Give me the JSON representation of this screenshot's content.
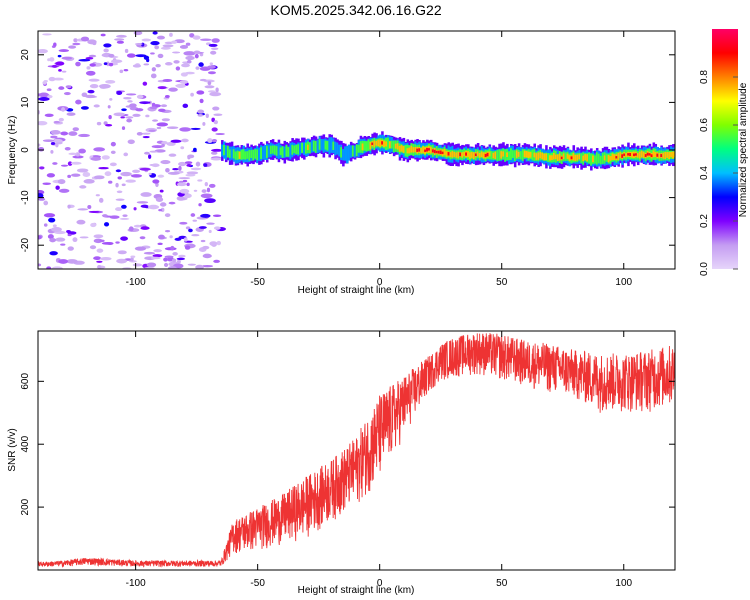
{
  "title": "KOM5.2025.342.06.16.G22",
  "chart_data": [
    {
      "id": "spectrogram",
      "type": "heatmap",
      "xlabel": "Height of straight line (km)",
      "ylabel": "Frequency (Hz)",
      "xlim": [
        -140,
        121
      ],
      "ylim": [
        -25,
        25
      ],
      "x_ticks": [
        -100,
        -50,
        0,
        50,
        100
      ],
      "y_ticks": [
        -20,
        -10,
        0,
        10,
        20
      ],
      "colorbar": {
        "label": "Normalized spectral amplitude",
        "range": [
          0,
          1
        ],
        "ticks": [
          0.0,
          0.2,
          0.4,
          0.6,
          0.8
        ],
        "tick_labels": [
          "0.0",
          "0.2",
          "0.4",
          "0.6",
          "0.8"
        ],
        "colormap": [
          "#e6d5fa",
          "#c49cf2",
          "#7f00ff",
          "#0000ff",
          "#00bfff",
          "#00ff80",
          "#80ff00",
          "#ffff00",
          "#ff8000",
          "#ff0000",
          "#ff0066"
        ]
      },
      "signal_ridge": {
        "x": [
          -65,
          -60,
          -55,
          -50,
          -45,
          -40,
          -35,
          -30,
          -25,
          -20,
          -15,
          -12,
          -8,
          -5,
          0,
          5,
          10,
          20,
          30,
          40,
          50,
          60,
          70,
          80,
          90,
          95,
          100,
          110,
          120
        ],
        "frequency": [
          0,
          -1,
          -1,
          -1,
          0,
          -0.5,
          0,
          0.5,
          1,
          1,
          -1,
          -0.5,
          0.5,
          1,
          1.5,
          1,
          0,
          0,
          -1,
          -1,
          -1,
          -1,
          -1.5,
          -1.5,
          -2,
          -1.5,
          -1,
          -1,
          -1
        ],
        "amplitude": [
          0.4,
          0.6,
          0.7,
          0.5,
          0.6,
          0.5,
          0.55,
          0.6,
          0.5,
          0.45,
          0.4,
          0.5,
          0.6,
          0.7,
          0.9,
          0.7,
          0.8,
          0.9,
          0.8,
          0.85,
          0.7,
          0.75,
          0.8,
          0.8,
          0.6,
          0.75,
          0.85,
          0.9,
          0.8
        ]
      },
      "noise_region_x": [
        -140,
        -65
      ]
    },
    {
      "id": "snr",
      "type": "line",
      "xlabel": "Height of straight line (km)",
      "ylabel": "SNR (v/v)",
      "xlim": [
        -140,
        121
      ],
      "ylim": [
        0,
        760
      ],
      "x_ticks": [
        -100,
        -50,
        0,
        50,
        100
      ],
      "y_ticks": [
        200,
        400,
        600
      ],
      "color": "#ee3333",
      "series": [
        {
          "name": "SNR",
          "envelope_x": [
            -140,
            -130,
            -120,
            -100,
            -80,
            -65,
            -60,
            -50,
            -40,
            -30,
            -20,
            -10,
            0,
            10,
            20,
            25,
            30,
            40,
            50,
            60,
            70,
            80,
            90,
            100,
            110,
            121
          ],
          "lower": [
            10,
            10,
            15,
            10,
            10,
            10,
            50,
            60,
            80,
            100,
            150,
            200,
            280,
            420,
            560,
            600,
            610,
            620,
            600,
            580,
            560,
            540,
            500,
            500,
            500,
            520
          ],
          "upper": [
            25,
            30,
            40,
            30,
            30,
            30,
            160,
            200,
            240,
            300,
            350,
            420,
            560,
            620,
            680,
            720,
            740,
            760,
            750,
            730,
            720,
            700,
            690,
            690,
            700,
            720
          ]
        }
      ]
    }
  ]
}
